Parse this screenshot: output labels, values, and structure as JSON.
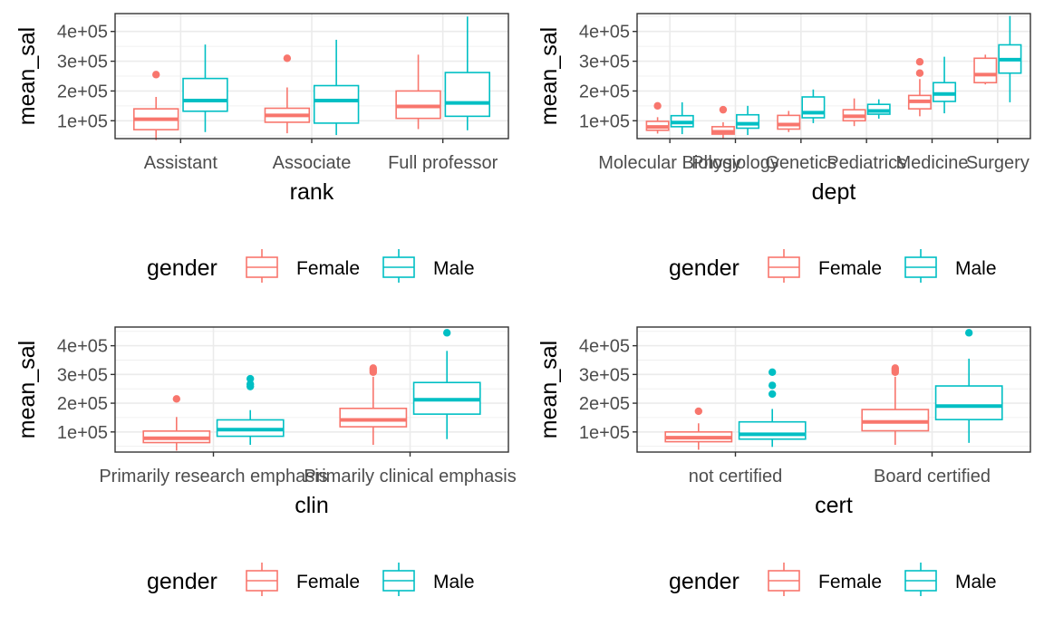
{
  "colors": {
    "Female": "#F8766D",
    "Male": "#00BFC4"
  },
  "chart_data": [
    {
      "type": "box",
      "xlabel": "rank",
      "ylabel": "mean_sal",
      "y_ticks": [
        "1e+05",
        "2e+05",
        "3e+05",
        "4e+05"
      ],
      "ylim": [
        40000,
        460000
      ],
      "categories": [
        "Assistant",
        "Associate",
        "Full professor"
      ],
      "legend": {
        "title": "gender",
        "entries": [
          "Female",
          "Male"
        ],
        "position": "bottom"
      },
      "series": [
        {
          "name": "Female",
          "boxes": [
            {
              "min": 35000,
              "q1": 70000,
              "median": 105000,
              "q3": 140000,
              "max": 180000,
              "outliers": [
                255000
              ]
            },
            {
              "min": 58000,
              "q1": 95000,
              "median": 118000,
              "q3": 142000,
              "max": 212000,
              "outliers": [
                310000
              ]
            },
            {
              "min": 72000,
              "q1": 108000,
              "median": 148000,
              "q3": 200000,
              "max": 322000,
              "outliers": []
            }
          ]
        },
        {
          "name": "Male",
          "boxes": [
            {
              "min": 62000,
              "q1": 132000,
              "median": 168000,
              "q3": 242000,
              "max": 356000,
              "outliers": []
            },
            {
              "min": 52000,
              "q1": 92000,
              "median": 168000,
              "q3": 218000,
              "max": 372000,
              "outliers": []
            },
            {
              "min": 68000,
              "q1": 115000,
              "median": 160000,
              "q3": 262000,
              "max": 450000,
              "outliers": []
            }
          ]
        }
      ]
    },
    {
      "type": "box",
      "xlabel": "dept",
      "ylabel": "mean_sal",
      "y_ticks": [
        "1e+05",
        "2e+05",
        "3e+05",
        "4e+05"
      ],
      "ylim": [
        40000,
        460000
      ],
      "categories": [
        "Molecular Biology",
        "Physiology",
        "Genetics",
        "Pediatrics",
        "Medicine",
        "Surgery"
      ],
      "legend": {
        "title": "gender",
        "entries": [
          "Female",
          "Male"
        ],
        "position": "bottom"
      },
      "series": [
        {
          "name": "Female",
          "boxes": [
            {
              "min": 57000,
              "q1": 68000,
              "median": 79000,
              "q3": 98000,
              "max": 112000,
              "outliers": [
                150000
              ]
            },
            {
              "min": 40000,
              "q1": 55000,
              "median": 63000,
              "q3": 80000,
              "max": 95000,
              "outliers": [
                137000
              ]
            },
            {
              "min": 62000,
              "q1": 72000,
              "median": 87000,
              "q3": 118000,
              "max": 133000,
              "outliers": []
            },
            {
              "min": 82000,
              "q1": 100000,
              "median": 115000,
              "q3": 137000,
              "max": 175000,
              "outliers": []
            },
            {
              "min": 115000,
              "q1": 140000,
              "median": 165000,
              "q3": 185000,
              "max": 240000,
              "outliers": [
                260000,
                298000
              ]
            },
            {
              "min": 222000,
              "q1": 228000,
              "median": 255000,
              "q3": 310000,
              "max": 322000,
              "outliers": []
            }
          ]
        },
        {
          "name": "Male",
          "boxes": [
            {
              "min": 55000,
              "q1": 80000,
              "median": 94000,
              "q3": 117000,
              "max": 162000,
              "outliers": []
            },
            {
              "min": 52000,
              "q1": 75000,
              "median": 90000,
              "q3": 120000,
              "max": 150000,
              "outliers": []
            },
            {
              "min": 92000,
              "q1": 110000,
              "median": 127000,
              "q3": 180000,
              "max": 205000,
              "outliers": []
            },
            {
              "min": 107000,
              "q1": 122000,
              "median": 133000,
              "q3": 155000,
              "max": 172000,
              "outliers": []
            },
            {
              "min": 125000,
              "q1": 165000,
              "median": 190000,
              "q3": 228000,
              "max": 315000,
              "outliers": []
            },
            {
              "min": 162000,
              "q1": 260000,
              "median": 305000,
              "q3": 355000,
              "max": 452000,
              "outliers": []
            }
          ]
        }
      ]
    },
    {
      "type": "box",
      "xlabel": "clin",
      "ylabel": "mean_sal",
      "y_ticks": [
        "1e+05",
        "2e+05",
        "3e+05",
        "4e+05"
      ],
      "ylim": [
        30000,
        465000
      ],
      "categories": [
        "Primarily research emphasis",
        "Primarily clinical emphasis"
      ],
      "legend": {
        "title": "gender",
        "entries": [
          "Female",
          "Male"
        ],
        "position": "bottom"
      },
      "series": [
        {
          "name": "Female",
          "boxes": [
            {
              "min": 35000,
              "q1": 63000,
              "median": 78000,
              "q3": 103000,
              "max": 152000,
              "outliers": [
                215000
              ]
            },
            {
              "min": 55000,
              "q1": 118000,
              "median": 142000,
              "q3": 182000,
              "max": 292000,
              "outliers": [
                308000,
                315000,
                322000
              ]
            }
          ]
        },
        {
          "name": "Male",
          "boxes": [
            {
              "min": 55000,
              "q1": 85000,
              "median": 108000,
              "q3": 142000,
              "max": 176000,
              "outliers": [
                258000,
                266000,
                285000
              ]
            },
            {
              "min": 75000,
              "q1": 162000,
              "median": 212000,
              "q3": 272000,
              "max": 382000,
              "outliers": [
                445000
              ]
            }
          ]
        }
      ]
    },
    {
      "type": "box",
      "xlabel": "cert",
      "ylabel": "mean_sal",
      "y_ticks": [
        "1e+05",
        "2e+05",
        "3e+05",
        "4e+05"
      ],
      "ylim": [
        30000,
        465000
      ],
      "categories": [
        "not certified",
        "Board certified"
      ],
      "legend": {
        "title": "gender",
        "entries": [
          "Female",
          "Male"
        ],
        "position": "bottom"
      },
      "series": [
        {
          "name": "Female",
          "boxes": [
            {
              "min": 38000,
              "q1": 66000,
              "median": 80000,
              "q3": 100000,
              "max": 130000,
              "outliers": [
                172000
              ]
            },
            {
              "min": 55000,
              "q1": 104000,
              "median": 135000,
              "q3": 178000,
              "max": 292000,
              "outliers": [
                308000,
                315000,
                322000
              ]
            }
          ]
        },
        {
          "name": "Male",
          "boxes": [
            {
              "min": 48000,
              "q1": 75000,
              "median": 92000,
              "q3": 135000,
              "max": 180000,
              "outliers": [
                232000,
                262000,
                308000
              ]
            },
            {
              "min": 62000,
              "q1": 143000,
              "median": 190000,
              "q3": 260000,
              "max": 355000,
              "outliers": [
                445000
              ]
            }
          ]
        }
      ]
    }
  ]
}
